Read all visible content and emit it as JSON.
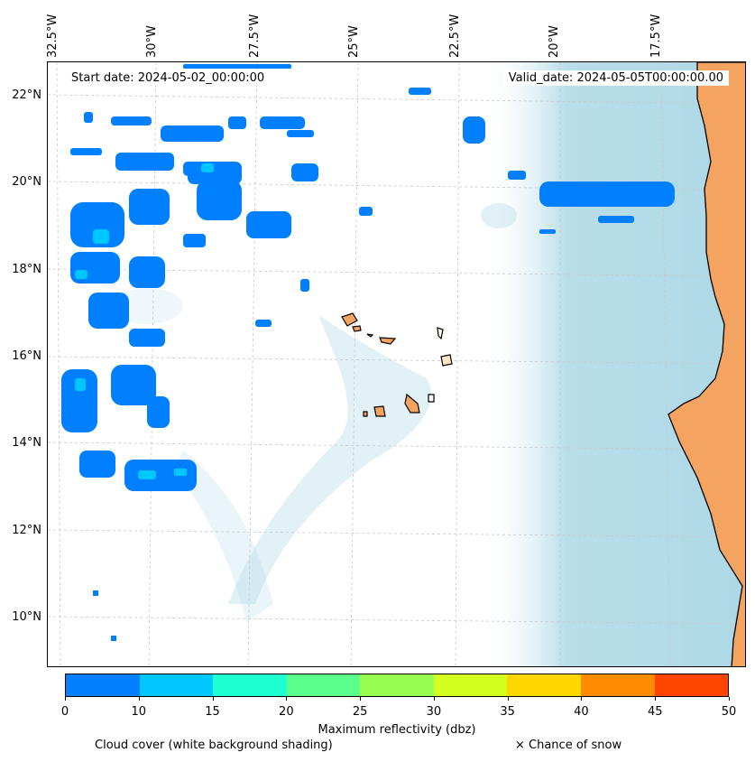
{
  "map": {
    "start_date": "Start date: 2024-05-02_00:00:00",
    "valid_date": "Valid_date: 2024-05-05T00:00:00.00",
    "lon_labels": [
      "32.5°W",
      "30°W",
      "27.5°W",
      "25°W",
      "22.5°W",
      "20°W",
      "17.5°W"
    ],
    "lat_labels": [
      "22°N",
      "20°N",
      "18°N",
      "16°N",
      "14°N",
      "12°N",
      "10°N"
    ],
    "colors": {
      "land": "#f4a460",
      "cloud": "#add8e6",
      "coast": "#000000",
      "grid": "#c8c8c8"
    }
  },
  "colorbar": {
    "label": "Maximum reflectivity (dbz)",
    "ticks": [
      "0",
      "5",
      "10",
      "15",
      "20",
      "25",
      "30",
      "35",
      "40",
      "45",
      "50"
    ],
    "colors": [
      "#0080ff",
      "#00c8ff",
      "#1effd2",
      "#5aff8c",
      "#96ff50",
      "#d2ff1e",
      "#ffd700",
      "#ff8c00",
      "#ff4500"
    ]
  },
  "notes": {
    "cloud": "Cloud cover (white background shading)",
    "snow": "× Chance of snow"
  }
}
